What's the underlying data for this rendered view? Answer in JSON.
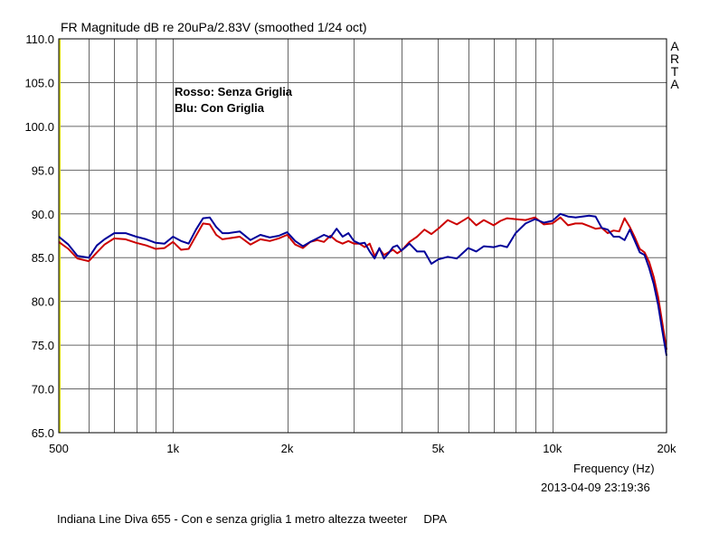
{
  "header": {
    "title": "FR Magnitude dB re 20uPa/2.83V (smoothed 1/24 oct)",
    "brand_letters": [
      "A",
      "R",
      "T",
      "A"
    ]
  },
  "footer": {
    "x_axis_label": "Frequency (Hz)",
    "datetime": "2013-04-09  23:19:36",
    "description": "Indiana Line Diva 655 - Con e senza griglia 1 metro altezza tweeter",
    "tag": "DPA"
  },
  "chart_data": {
    "type": "line",
    "title": "FR Magnitude dB re 20uPa/2.83V (smoothed 1/24 oct)",
    "xlabel": "Frequency (Hz)",
    "ylabel": "",
    "xscale": "log",
    "xlim": [
      500,
      20000
    ],
    "ylim": [
      65,
      110
    ],
    "grid": true,
    "legend_position": "top-left",
    "y_ticks": [
      "110.0",
      "105.0",
      "100.0",
      "95.0",
      "90.0",
      "85.0",
      "80.0",
      "75.0",
      "70.0",
      "65.0"
    ],
    "y_tick_values": [
      110,
      105,
      100,
      95,
      90,
      85,
      80,
      75,
      70,
      65
    ],
    "x_ticks": [
      {
        "value": 500,
        "label": "500"
      },
      {
        "value": 1000,
        "label": "1k"
      },
      {
        "value": 2000,
        "label": "2k"
      },
      {
        "value": 5000,
        "label": "5k"
      },
      {
        "value": 10000,
        "label": "10k"
      },
      {
        "value": 20000,
        "label": "20k"
      }
    ],
    "x_grid_values": [
      600,
      700,
      800,
      900,
      1000,
      2000,
      3000,
      4000,
      5000,
      6000,
      7000,
      8000,
      9000,
      10000
    ],
    "legend": [
      "Rosso: Senza Griglia",
      "Blu: Con Griglia"
    ],
    "series": [
      {
        "name": "Rosso: Senza Griglia",
        "color": "#cc0000",
        "x": [
          500,
          530,
          560,
          600,
          630,
          660,
          700,
          750,
          800,
          850,
          900,
          950,
          1000,
          1050,
          1100,
          1150,
          1200,
          1250,
          1300,
          1350,
          1400,
          1500,
          1600,
          1700,
          1800,
          1900,
          2000,
          2100,
          2200,
          2300,
          2400,
          2500,
          2600,
          2700,
          2800,
          2900,
          3000,
          3100,
          3200,
          3300,
          3400,
          3500,
          3600,
          3700,
          3800,
          3900,
          4000,
          4200,
          4400,
          4600,
          4800,
          5000,
          5300,
          5600,
          6000,
          6300,
          6600,
          7000,
          7300,
          7600,
          8000,
          8500,
          9000,
          9500,
          10000,
          10500,
          11000,
          11500,
          12000,
          12500,
          13000,
          13500,
          14000,
          14500,
          15000,
          15500,
          16000,
          16500,
          17000,
          17500,
          18000,
          18500,
          19000,
          19500,
          20000
        ],
        "y": [
          86.8,
          86.0,
          84.9,
          84.6,
          85.6,
          86.5,
          87.2,
          87.1,
          86.7,
          86.4,
          86.0,
          86.1,
          86.8,
          85.9,
          86.0,
          87.5,
          88.9,
          88.8,
          87.6,
          87.1,
          87.2,
          87.4,
          86.5,
          87.1,
          86.9,
          87.2,
          87.6,
          86.5,
          86.1,
          86.8,
          87.0,
          86.8,
          87.5,
          86.9,
          86.6,
          86.9,
          86.6,
          86.6,
          86.2,
          86.6,
          85.2,
          86.0,
          85.3,
          85.6,
          85.9,
          85.5,
          85.8,
          86.8,
          87.4,
          88.2,
          87.7,
          88.3,
          89.3,
          88.8,
          89.6,
          88.7,
          89.3,
          88.7,
          89.2,
          89.5,
          89.4,
          89.3,
          89.6,
          88.8,
          88.9,
          89.6,
          88.7,
          88.9,
          88.9,
          88.6,
          88.3,
          88.4,
          87.8,
          88.1,
          88.0,
          89.5,
          88.5,
          87.3,
          86.0,
          85.6,
          84.5,
          82.8,
          80.5,
          77.5,
          74.5
        ]
      },
      {
        "name": "Blu: Con Griglia",
        "color": "#000099",
        "x": [
          500,
          530,
          560,
          600,
          630,
          660,
          700,
          750,
          800,
          850,
          900,
          950,
          1000,
          1050,
          1100,
          1150,
          1200,
          1250,
          1300,
          1350,
          1400,
          1500,
          1600,
          1700,
          1800,
          1900,
          2000,
          2100,
          2200,
          2300,
          2400,
          2500,
          2600,
          2700,
          2800,
          2900,
          3000,
          3100,
          3200,
          3300,
          3400,
          3500,
          3600,
          3700,
          3800,
          3900,
          4000,
          4200,
          4400,
          4600,
          4800,
          5000,
          5300,
          5600,
          6000,
          6300,
          6600,
          7000,
          7300,
          7600,
          8000,
          8500,
          9000,
          9500,
          10000,
          10500,
          11000,
          11500,
          12000,
          12500,
          13000,
          13500,
          14000,
          14500,
          15000,
          15500,
          16000,
          16500,
          17000,
          17500,
          18000,
          18500,
          19000,
          19500,
          20000
        ],
        "y": [
          87.4,
          86.5,
          85.2,
          85.0,
          86.4,
          87.1,
          87.8,
          87.8,
          87.4,
          87.1,
          86.7,
          86.6,
          87.4,
          86.9,
          86.6,
          88.2,
          89.5,
          89.6,
          88.5,
          87.8,
          87.8,
          88.0,
          87.0,
          87.6,
          87.3,
          87.5,
          87.9,
          86.9,
          86.3,
          86.8,
          87.2,
          87.6,
          87.3,
          88.3,
          87.4,
          87.8,
          86.9,
          86.6,
          86.7,
          85.7,
          84.9,
          86.1,
          84.9,
          85.5,
          86.2,
          86.4,
          85.8,
          86.6,
          85.7,
          85.7,
          84.3,
          84.8,
          85.1,
          84.9,
          86.1,
          85.7,
          86.3,
          86.2,
          86.4,
          86.2,
          87.8,
          88.9,
          89.4,
          89.0,
          89.2,
          90.0,
          89.7,
          89.6,
          89.7,
          89.8,
          89.7,
          88.4,
          88.2,
          87.4,
          87.4,
          87.0,
          88.2,
          86.9,
          85.6,
          85.3,
          83.8,
          82.0,
          79.6,
          76.6,
          73.8
        ]
      }
    ]
  }
}
